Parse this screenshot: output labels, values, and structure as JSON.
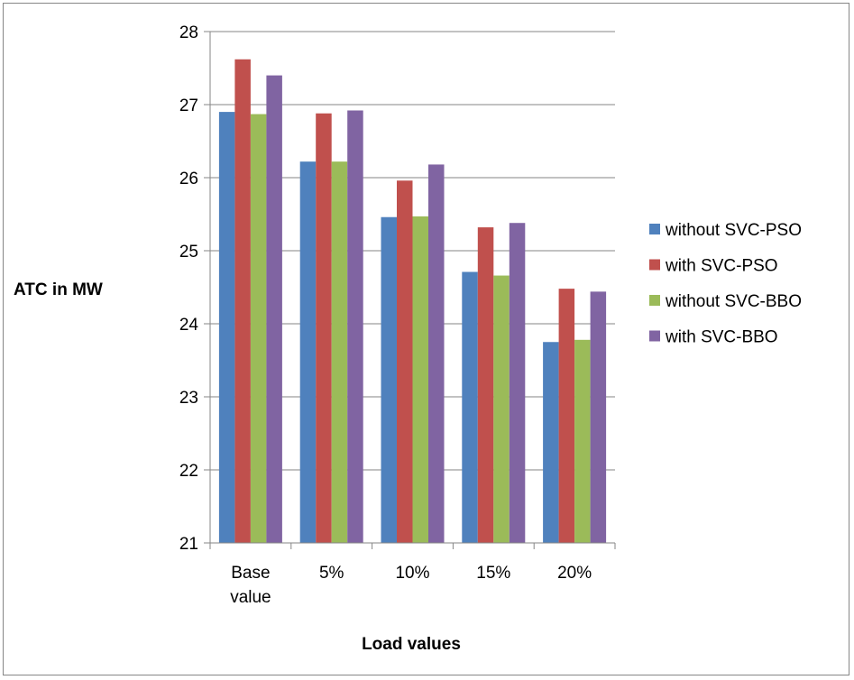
{
  "chart_data": {
    "type": "bar",
    "categories": [
      [
        "Base",
        "value"
      ],
      [
        "5%"
      ],
      [
        "10%"
      ],
      [
        "15%"
      ],
      [
        "20%"
      ]
    ],
    "series": [
      {
        "name": "without SVC-PSO",
        "values": [
          26.9,
          26.22,
          25.46,
          24.71,
          23.75
        ]
      },
      {
        "name": "with SVC-PSO",
        "values": [
          27.62,
          26.88,
          25.96,
          25.32,
          24.48
        ]
      },
      {
        "name": "without SVC-BBO",
        "values": [
          26.87,
          26.22,
          25.47,
          24.66,
          23.78
        ]
      },
      {
        "name": "with SVC-BBO",
        "values": [
          27.4,
          26.92,
          26.18,
          25.38,
          24.44
        ]
      }
    ],
    "colors": [
      "#4F81BD",
      "#C0504D",
      "#9BBB59",
      "#8064A2"
    ],
    "xlabel": "Load values",
    "ylabel": "ATC in MW",
    "ylim": [
      21,
      28
    ],
    "yticks": [
      21,
      22,
      23,
      24,
      25,
      26,
      27,
      28
    ],
    "grid": true,
    "legend_position": "right"
  }
}
